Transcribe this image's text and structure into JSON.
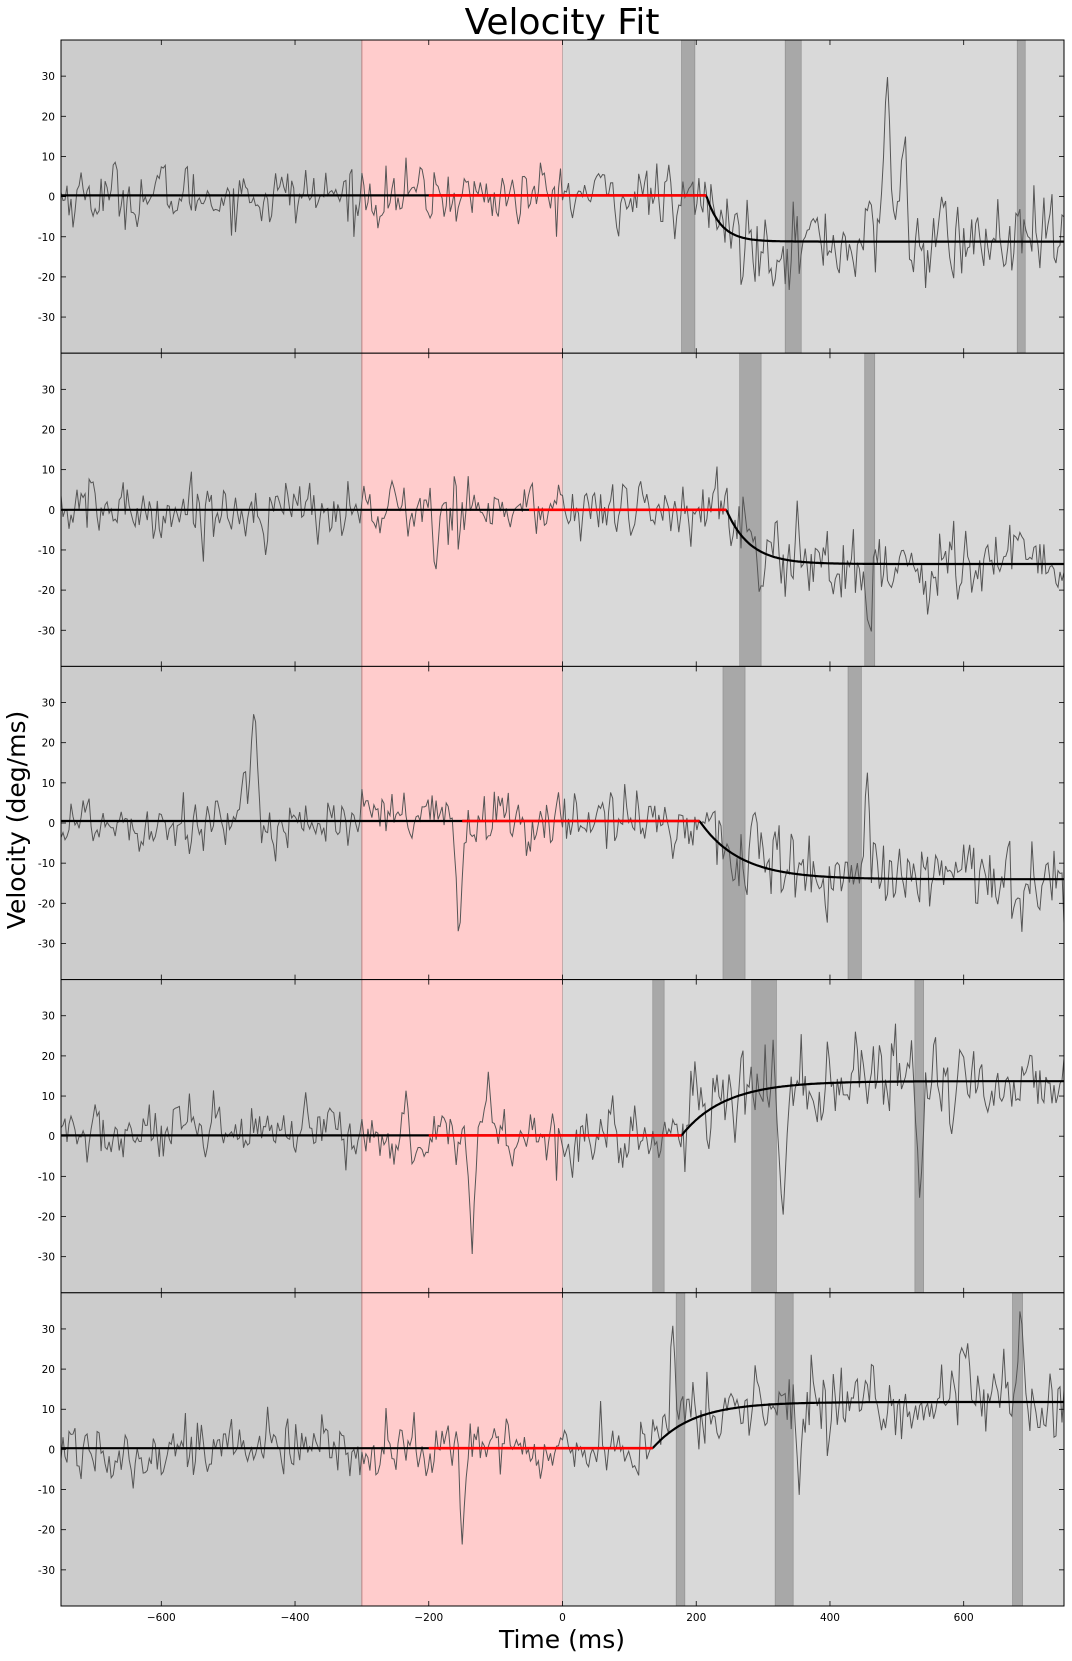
{
  "chart_data": {
    "type": "line",
    "title": "Velocity Fit",
    "xlabel": "Time (ms)",
    "ylabel": "Velocity (deg/ms)",
    "xlim": [
      -750,
      750
    ],
    "ylim": [
      -39,
      39
    ],
    "x_ticks": [
      -600,
      -400,
      -200,
      0,
      200,
      400,
      600
    ],
    "y_ticks": [
      -30,
      -20,
      -10,
      0,
      10,
      20,
      30
    ],
    "grid": false,
    "legend": "none",
    "colors": {
      "baseline_region": "#cccccc",
      "stimulus_region": "#ffcccc",
      "response_region": "#d9d9d9",
      "saccade_band": "#a8a8a8",
      "trace": "#555555",
      "fit": "#000000",
      "fit_highlight": "#ff0000"
    },
    "regions": {
      "baseline": [
        -750,
        -300
      ],
      "stimulus": [
        -300,
        0
      ],
      "response": [
        0,
        750
      ]
    },
    "panels": [
      {
        "fit": {
          "onset": 215,
          "base": 0.3,
          "final": -11.2,
          "tau": 22,
          "red_range": [
            -200,
            215
          ]
        },
        "saccade_bands": [
          [
            178,
            198
          ],
          [
            333,
            357
          ],
          [
            680,
            692
          ]
        ],
        "events": [
          {
            "t": 170,
            "amp": -12,
            "w": 5
          },
          {
            "t": 485,
            "amp": 42,
            "w": 7
          },
          {
            "t": 510,
            "amp": 24,
            "w": 6
          }
        ]
      },
      {
        "fit": {
          "onset": 245,
          "base": 0.0,
          "final": -13.5,
          "tau": 35,
          "red_range": [
            -50,
            245
          ]
        },
        "saccade_bands": [
          [
            265,
            297
          ],
          [
            452,
            467
          ]
        ],
        "events": [
          {
            "t": -135,
            "amp": 13,
            "w": 6
          },
          {
            "t": -190,
            "amp": -14,
            "w": 5
          },
          {
            "t": 460,
            "amp": -16,
            "w": 6
          }
        ]
      },
      {
        "fit": {
          "onset": 205,
          "base": 0.5,
          "final": -14.0,
          "tau": 60,
          "red_range": [
            -150,
            205
          ]
        },
        "saccade_bands": [
          [
            240,
            273
          ],
          [
            427,
            447
          ]
        ],
        "events": [
          {
            "t": -460,
            "amp": 26,
            "w": 6
          },
          {
            "t": -155,
            "amp": -27,
            "w": 6
          },
          {
            "t": 290,
            "amp": 14,
            "w": 6
          },
          {
            "t": 455,
            "amp": 16,
            "w": 6
          }
        ]
      },
      {
        "fit": {
          "onset": 178,
          "base": 0.2,
          "final": 13.7,
          "tau": 65,
          "red_range": [
            -200,
            178
          ]
        },
        "saccade_bands": [
          [
            135,
            152
          ],
          [
            283,
            320
          ],
          [
            527,
            540
          ]
        ],
        "events": [
          {
            "t": -135,
            "amp": -25,
            "w": 5
          },
          {
            "t": -112,
            "amp": 18,
            "w": 5
          },
          {
            "t": 330,
            "amp": -30,
            "w": 6
          },
          {
            "t": 535,
            "amp": -30,
            "w": 6
          }
        ]
      },
      {
        "fit": {
          "onset": 135,
          "base": 0.3,
          "final": 11.8,
          "tau": 60,
          "red_range": [
            -200,
            135
          ]
        },
        "saccade_bands": [
          [
            170,
            183
          ],
          [
            318,
            345
          ],
          [
            673,
            688
          ]
        ],
        "events": [
          {
            "t": -150,
            "amp": -24,
            "w": 5
          },
          {
            "t": 165,
            "amp": 24,
            "w": 5
          },
          {
            "t": 355,
            "amp": -18,
            "w": 6
          },
          {
            "t": 685,
            "amp": 24,
            "w": 6
          }
        ]
      }
    ]
  }
}
